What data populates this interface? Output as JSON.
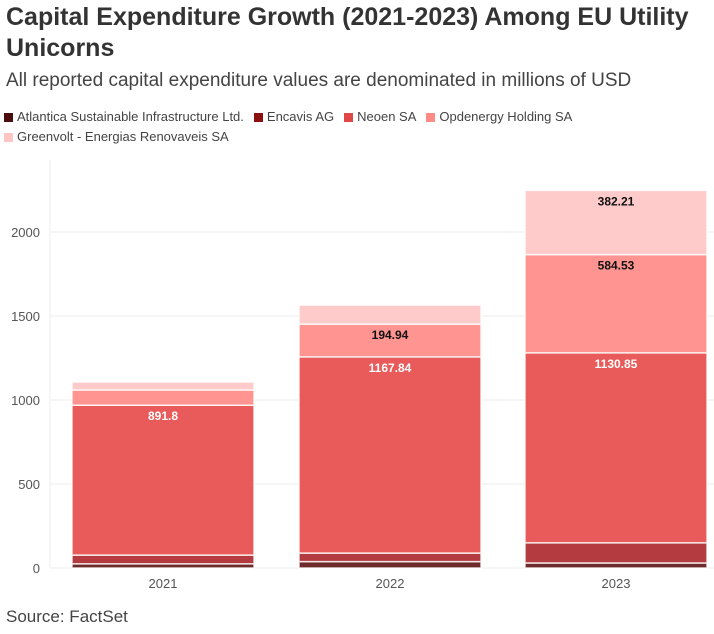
{
  "title": "Capital Expenditure Growth (2021-2023) Among EU Utility Unicorns",
  "subtitle": "All reported capital expenditure values are denominated in millions of USD",
  "source": "Source: FactSet",
  "chart_data": {
    "type": "bar",
    "stacked": true,
    "categories": [
      "2021",
      "2022",
      "2023"
    ],
    "series": [
      {
        "name": "Atlantica Sustainable Infrastructure Ltd.",
        "color": "#6e2b2c",
        "values": [
          25,
          38,
          30
        ]
      },
      {
        "name": "Encavis AG",
        "color": "#b43b40",
        "values": [
          52,
          51,
          120
        ]
      },
      {
        "name": "Neoen SA",
        "color": "#e85b5a",
        "values": [
          891.8,
          1167.84,
          1130.85
        ],
        "labels": [
          "891.8",
          "1167.84",
          "1130.85"
        ]
      },
      {
        "name": "Opdenergy Holding SA",
        "color": "#ff9491",
        "values": [
          91,
          194.94,
          584.53
        ],
        "labels": [
          "",
          "194.94",
          "584.53"
        ]
      },
      {
        "name": "Greenvolt - Energias Renovaveis SA",
        "color": "#ffcaca",
        "values": [
          47,
          113,
          382.21
        ],
        "labels": [
          "",
          "",
          "382.21"
        ]
      }
    ],
    "yticks": [
      0,
      500,
      1000,
      1500,
      2000
    ],
    "ylim": [
      0,
      2350
    ],
    "grid": true,
    "legend": "top"
  }
}
